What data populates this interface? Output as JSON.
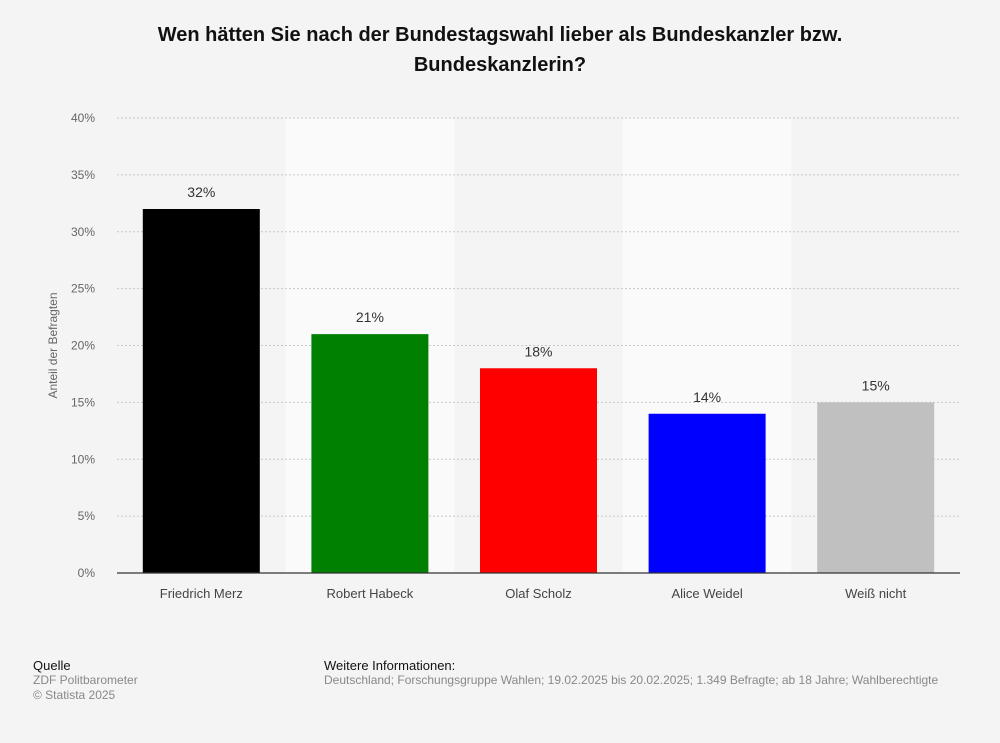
{
  "chart_data": {
    "type": "bar",
    "title": "Wen hätten Sie nach der Bundestagswahl lieber als Bundeskanzler bzw. Bundeskanzlerin?",
    "ylabel": "Anteil der Befragten",
    "xlabel": "",
    "ylim": [
      0,
      40
    ],
    "yticks": [
      "0%",
      "5%",
      "10%",
      "15%",
      "20%",
      "25%",
      "30%",
      "35%",
      "40%"
    ],
    "categories": [
      "Friedrich Merz",
      "Robert Habeck",
      "Olaf Scholz",
      "Alice Weidel",
      "Weiß nicht"
    ],
    "values": [
      32,
      21,
      18,
      14,
      15
    ],
    "data_labels": [
      "32%",
      "21%",
      "18%",
      "14%",
      "15%"
    ],
    "colors": [
      "#000000",
      "#008000",
      "#ff0000",
      "#0000ff",
      "#c0c0c0"
    ],
    "grid": true
  },
  "footer": {
    "source_heading": "Quelle",
    "source_lines": [
      "ZDF Politbarometer",
      "© Statista 2025"
    ],
    "info_heading": "Weitere Informationen:",
    "info_text": "Deutschland; Forschungsgruppe Wahlen; 19.02.2025 bis 20.02.2025; 1.349 Befragte; ab 18 Jahre; Wahlberechtigte"
  }
}
